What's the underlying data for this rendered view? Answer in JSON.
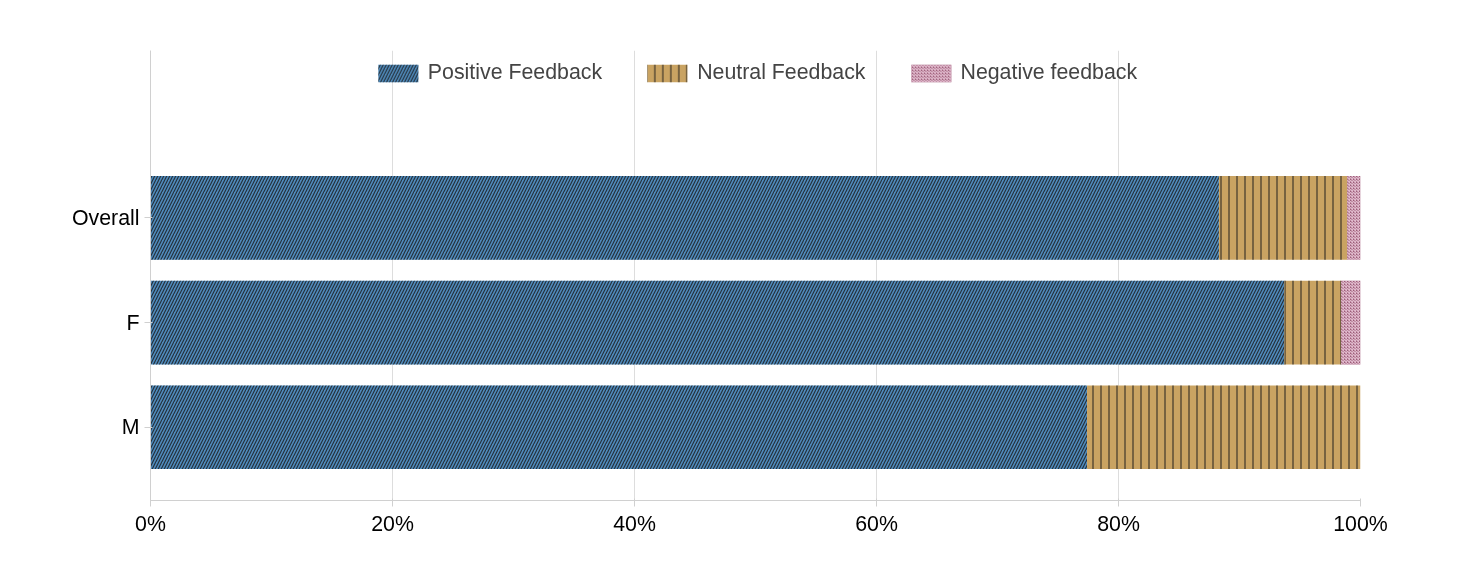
{
  "chart_data": {
    "type": "bar",
    "orientation": "horizontal",
    "stacked": true,
    "categories": [
      "Overall",
      "F",
      "M"
    ],
    "series": [
      {
        "name": "Positive Feedback",
        "color": "#4f8bbd",
        "values": [
          88.3,
          93.7,
          77.4
        ]
      },
      {
        "name": "Neutral Feedback",
        "color": "#c9a362",
        "values": [
          10.6,
          4.7,
          22.6
        ]
      },
      {
        "name": "Negative feedback",
        "color": "#9c5c78",
        "values": [
          1.1,
          1.6,
          0
        ]
      }
    ],
    "xlim": [
      0,
      100
    ],
    "xticks": [
      {
        "value": 0,
        "label": "0%"
      },
      {
        "value": 20,
        "label": "20%"
      },
      {
        "value": 40,
        "label": "40%"
      },
      {
        "value": 60,
        "label": "60%"
      },
      {
        "value": 80,
        "label": "80%"
      },
      {
        "value": 100,
        "label": "100%"
      }
    ],
    "grid": "x",
    "legend": "top"
  }
}
